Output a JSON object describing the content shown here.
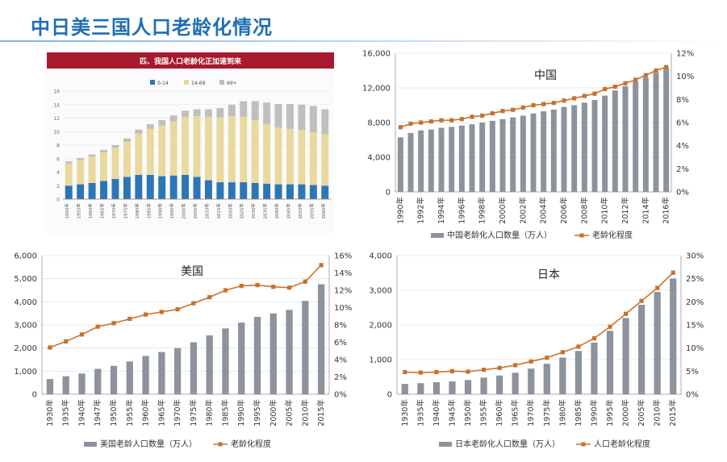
{
  "page": {
    "title": "中日美三国人口老龄化情况"
  },
  "colors": {
    "title": "#1f6fb4",
    "bar_gray": "#8c939c",
    "line_orange": "#c8722b",
    "band_red": "#a6192e",
    "age_0_14": "#2e75b6",
    "age_14_69": "#ead99e",
    "age_69_plus": "#bfbfbf"
  },
  "chart_data": [
    {
      "id": "age-structure",
      "type": "bar",
      "stacked": true,
      "title": "匹、我国人口老龄化正加速到来",
      "categories": [
        "1950年",
        "1955年",
        "1960年",
        "1965年",
        "1970年",
        "1975年",
        "1980年",
        "1985年",
        "1990年",
        "1995年",
        "2000年",
        "2005年",
        "2010年",
        "2015年",
        "2020年",
        "2025年",
        "2030年",
        "2035年",
        "2040年",
        "2045年",
        "2050年",
        "2055年",
        "2060年"
      ],
      "series": [
        {
          "name": "0-14",
          "values": [
            2.0,
            2.2,
            2.4,
            2.7,
            3.0,
            3.3,
            3.6,
            3.6,
            3.4,
            3.5,
            3.6,
            3.3,
            2.8,
            2.5,
            2.5,
            2.5,
            2.4,
            2.3,
            2.2,
            2.2,
            2.2,
            2.1,
            2.0
          ]
        },
        {
          "name": "14-69",
          "values": [
            3.3,
            3.6,
            3.9,
            4.2,
            4.6,
            5.2,
            6.1,
            6.8,
            7.5,
            8.0,
            8.6,
            9.0,
            9.4,
            9.6,
            9.8,
            9.7,
            9.3,
            8.8,
            8.4,
            8.2,
            8.0,
            7.8,
            7.6
          ]
        },
        {
          "name": "69+",
          "values": [
            0.3,
            0.3,
            0.3,
            0.4,
            0.4,
            0.5,
            0.6,
            0.7,
            0.8,
            0.9,
            0.9,
            1.0,
            1.1,
            1.4,
            1.7,
            2.3,
            2.8,
            3.2,
            3.5,
            3.7,
            3.8,
            3.9,
            3.7
          ]
        }
      ],
      "yticks": [
        0,
        2,
        4,
        6,
        8,
        10,
        12,
        14,
        16
      ],
      "ylim": [
        0,
        16
      ],
      "legend_position": "top"
    },
    {
      "id": "china",
      "type": "bar+line",
      "annotation": "中国",
      "categories": [
        "1990年",
        "1991年",
        "1992年",
        "1993年",
        "1994年",
        "1995年",
        "1996年",
        "1997年",
        "1998年",
        "1999年",
        "2000年",
        "2001年",
        "2002年",
        "2003年",
        "2004年",
        "2005年",
        "2006年",
        "2007年",
        "2008年",
        "2009年",
        "2010年",
        "2011年",
        "2012年",
        "2013年",
        "2014年",
        "2015年",
        "2016年"
      ],
      "tick_labels": [
        "1990年",
        "",
        "1992年",
        "",
        "1994年",
        "",
        "1996年",
        "",
        "1998年",
        "",
        "2000年",
        "",
        "2002年",
        "",
        "2004年",
        "",
        "2006年",
        "",
        "2008年",
        "",
        "2010年",
        "",
        "2012年",
        "",
        "2014年",
        "",
        "2016年"
      ],
      "series": [
        {
          "name": "中国老龄化人口数量（万人）",
          "kind": "bar",
          "axis": "left",
          "values": [
            6300,
            6800,
            7100,
            7200,
            7400,
            7500,
            7650,
            7800,
            8000,
            8200,
            8400,
            8600,
            8800,
            9050,
            9300,
            9500,
            9800,
            10000,
            10300,
            10600,
            11100,
            11700,
            12200,
            12700,
            13200,
            13750,
            14300
          ]
        },
        {
          "name": "老龄化程度",
          "kind": "line",
          "axis": "right",
          "values": [
            5.6,
            5.9,
            6.0,
            6.1,
            6.2,
            6.2,
            6.3,
            6.5,
            6.6,
            6.8,
            7.0,
            7.1,
            7.3,
            7.5,
            7.6,
            7.7,
            7.9,
            8.1,
            8.3,
            8.5,
            8.9,
            9.1,
            9.4,
            9.7,
            10.1,
            10.5,
            10.8
          ]
        }
      ],
      "yleft_ticks": [
        "0",
        "4,000",
        "8,000",
        "12,000",
        "16,000"
      ],
      "yleft_lim": [
        0,
        16000
      ],
      "yright_ticks": [
        "0%",
        "2%",
        "4%",
        "6%",
        "8%",
        "10%",
        "12%"
      ],
      "yright_lim": [
        0,
        12
      ]
    },
    {
      "id": "usa",
      "type": "bar+line",
      "annotation": "美国",
      "categories": [
        "1930年",
        "1935年",
        "1940年",
        "1947年",
        "1950年",
        "1955年",
        "1960年",
        "1965年",
        "1970年",
        "1975年",
        "1980年",
        "1985年",
        "1990年",
        "1995年",
        "2000年",
        "2005年",
        "2010年",
        "2015年"
      ],
      "tick_labels": [
        "1930年",
        "1935年",
        "1940年",
        "1947年",
        "1950年",
        "1955年",
        "1960年",
        "1965年",
        "1970年",
        "1975年",
        "1980年",
        "1985年",
        "1990年",
        "1995年",
        "2000年",
        "2005年",
        "2010年",
        "2015年"
      ],
      "series": [
        {
          "name": "美国老龄人口数量（万人）",
          "kind": "bar",
          "axis": "left",
          "values": [
            660,
            780,
            900,
            1100,
            1230,
            1420,
            1660,
            1830,
            2000,
            2250,
            2550,
            2850,
            3100,
            3350,
            3500,
            3650,
            4040,
            4760
          ]
        },
        {
          "name": "老龄化程度",
          "kind": "line",
          "axis": "right",
          "values": [
            5.4,
            6.1,
            6.9,
            7.8,
            8.2,
            8.7,
            9.2,
            9.5,
            9.8,
            10.5,
            11.2,
            12.0,
            12.5,
            12.6,
            12.4,
            12.3,
            13.0,
            14.9
          ]
        }
      ],
      "yleft_ticks": [
        "0",
        "1,000",
        "2,000",
        "3,000",
        "4,000",
        "5,000",
        "6,000"
      ],
      "yleft_lim": [
        0,
        6000
      ],
      "yright_ticks": [
        "0%",
        "2%",
        "4%",
        "6%",
        "8%",
        "10%",
        "12%",
        "14%",
        "16%"
      ],
      "yright_lim": [
        0,
        16
      ]
    },
    {
      "id": "japan",
      "type": "bar+line",
      "annotation": "日本",
      "categories": [
        "1930年",
        "1935年",
        "1940年",
        "1945年",
        "1950年",
        "1955年",
        "1960年",
        "1965年",
        "1970年",
        "1975年",
        "1980年",
        "1985年",
        "1990年",
        "1995年",
        "2000年",
        "2005年",
        "2010年",
        "2015年"
      ],
      "tick_labels": [
        "1930年",
        "1935年",
        "1940年",
        "1945年",
        "1950年",
        "1955年",
        "1960年",
        "1965年",
        "1970年",
        "1975年",
        "1980年",
        "1985年",
        "1990年",
        "1995年",
        "2000年",
        "2005年",
        "2010年",
        "2015年"
      ],
      "series": [
        {
          "name": "日本老龄化人口数量（万人）",
          "kind": "bar",
          "axis": "left",
          "values": [
            300,
            320,
            350,
            370,
            410,
            480,
            540,
            620,
            740,
            880,
            1060,
            1250,
            1490,
            1830,
            2200,
            2580,
            2950,
            3340
          ]
        },
        {
          "name": "人口老龄化程度",
          "kind": "line",
          "axis": "right",
          "values": [
            4.8,
            4.7,
            4.8,
            5.0,
            4.9,
            5.3,
            5.7,
            6.3,
            7.1,
            7.9,
            9.1,
            10.3,
            12.1,
            14.6,
            17.4,
            20.2,
            23.0,
            26.3
          ]
        }
      ],
      "yleft_ticks": [
        "0",
        "1,000",
        "2,000",
        "3,000",
        "4,000"
      ],
      "yleft_lim": [
        0,
        4000
      ],
      "yright_ticks": [
        "0%",
        "5%",
        "10%",
        "15%",
        "20%",
        "25%",
        "30%"
      ],
      "yright_lim": [
        0,
        30
      ]
    }
  ]
}
